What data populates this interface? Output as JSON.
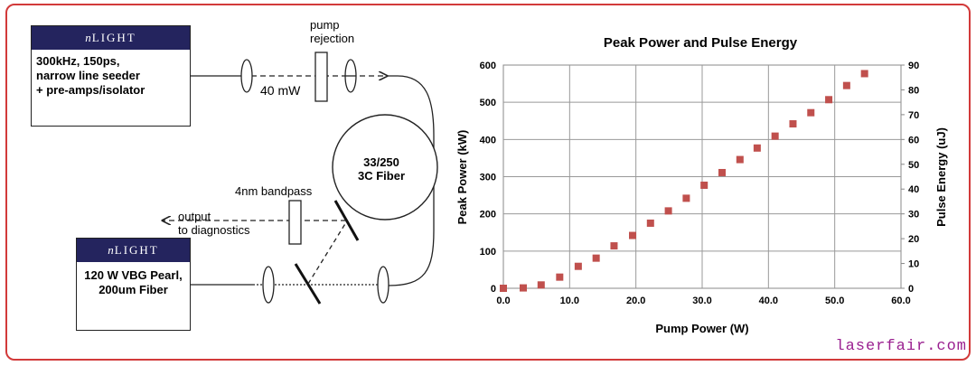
{
  "diagram": {
    "seeder_box": {
      "brand_prefix": "n",
      "brand_name": "LIGHT",
      "description": "300kHz, 150ps,\nnarrow line seeder\n+ pre-amps/isolator"
    },
    "pump_box": {
      "brand_prefix": "n",
      "brand_name": "LIGHT",
      "description": "120 W VBG Pearl,\n200um Fiber"
    },
    "labels": {
      "pump_rejection": "pump\nrejection",
      "seed_power": "40 mW",
      "fiber": "33/250\n3C Fiber",
      "bandpass": "4nm bandpass",
      "output": "output\nto diagnostics"
    }
  },
  "chart_data": {
    "type": "scatter",
    "title": "Peak Power and Pulse Energy",
    "xlabel": "Pump Power (W)",
    "ylabel": "Peak Power (kW)",
    "y2label": "Pulse Energy (uJ)",
    "xlim": [
      0,
      60
    ],
    "ylim": [
      0,
      600
    ],
    "y2lim": [
      0,
      90
    ],
    "xticks": [
      "0.0",
      "10.0",
      "20.0",
      "30.0",
      "40.0",
      "50.0",
      "60.0"
    ],
    "yticks": [
      "0",
      "100",
      "200",
      "300",
      "400",
      "500",
      "600"
    ],
    "y2ticks": [
      "0",
      "10",
      "20",
      "30",
      "40",
      "50",
      "60",
      "70",
      "80",
      "90"
    ],
    "grid": true,
    "marker_color": "#c0504d",
    "points": [
      {
        "x": 0.0,
        "y": 0
      },
      {
        "x": 3.0,
        "y": 1
      },
      {
        "x": 5.7,
        "y": 9
      },
      {
        "x": 8.5,
        "y": 30
      },
      {
        "x": 11.3,
        "y": 59
      },
      {
        "x": 14.0,
        "y": 81
      },
      {
        "x": 16.7,
        "y": 114
      },
      {
        "x": 19.5,
        "y": 142
      },
      {
        "x": 22.2,
        "y": 175
      },
      {
        "x": 24.9,
        "y": 208
      },
      {
        "x": 27.6,
        "y": 242
      },
      {
        "x": 30.3,
        "y": 277
      },
      {
        "x": 33.0,
        "y": 311
      },
      {
        "x": 35.7,
        "y": 346
      },
      {
        "x": 38.3,
        "y": 377
      },
      {
        "x": 41.0,
        "y": 409
      },
      {
        "x": 43.7,
        "y": 442
      },
      {
        "x": 46.4,
        "y": 472
      },
      {
        "x": 49.1,
        "y": 507
      },
      {
        "x": 51.8,
        "y": 545
      },
      {
        "x": 54.5,
        "y": 577
      }
    ]
  },
  "watermark": "laserfair.com"
}
